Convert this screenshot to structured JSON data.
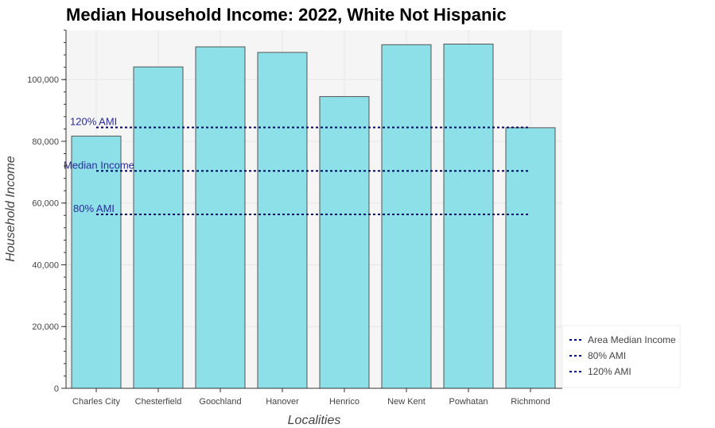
{
  "chart_data": {
    "type": "bar",
    "title": "Median Household Income: 2022, White Not Hispanic",
    "xlabel": "Localities",
    "ylabel": "Household Income",
    "categories": [
      "Charles City",
      "Chesterfield",
      "Goochland",
      "Hanover",
      "Henrico",
      "New Kent",
      "Powhatan",
      "Richmond"
    ],
    "values": [
      81700,
      104100,
      110600,
      108800,
      94500,
      111300,
      111500,
      84400
    ],
    "ylim": [
      0,
      116000
    ],
    "yticks": [
      0,
      20000,
      40000,
      60000,
      80000,
      100000
    ],
    "ytick_labels": [
      "0",
      "20,000",
      "40,000",
      "60,000",
      "80,000",
      "100,000"
    ],
    "grid": true,
    "bar_color": "#8ee0e8",
    "bar_edge_color": "#555555",
    "plot_background": "#f5f5f5",
    "reference_lines": [
      {
        "name": "Area Median Income",
        "label": "Median Income",
        "value": 70400,
        "color": "#00007f"
      },
      {
        "name": "80% AMI",
        "label": "80% AMI",
        "value": 56320,
        "color": "#00007f"
      },
      {
        "name": "120% AMI",
        "label": "120% AMI",
        "value": 84480,
        "color": "#00007f"
      }
    ],
    "legend": {
      "placement": "bottom-right-outside",
      "entries": [
        "Area Median Income",
        "80% AMI",
        "120% AMI"
      ]
    }
  }
}
